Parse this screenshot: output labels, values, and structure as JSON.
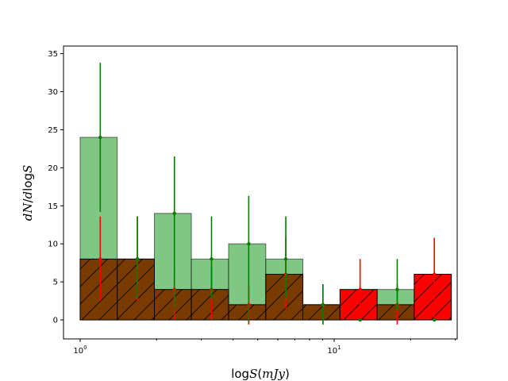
{
  "chart_data": {
    "type": "bar",
    "xlabel": "logS(mJy)",
    "ylabel": "dN/dlogS",
    "xscale": "log",
    "xlim": [
      0.86,
      30.5
    ],
    "ylim": [
      -2.5,
      36.0
    ],
    "yticks": [
      0,
      5,
      10,
      15,
      20,
      25,
      30,
      35
    ],
    "xticks": [
      {
        "value": 1,
        "base": "10",
        "exp": "0"
      },
      {
        "value": 10,
        "base": "10",
        "exp": "1"
      }
    ],
    "bin_edges": [
      1.0,
      1.4,
      1.96,
      2.74,
      3.84,
      5.38,
      7.53,
      10.54,
      14.76,
      20.66,
      28.93
    ],
    "bin_centers": [
      1.2,
      1.68,
      2.35,
      3.29,
      4.61,
      6.45,
      9.03,
      12.65,
      17.71,
      24.79
    ],
    "series": [
      {
        "style": "green translucent bars with error bars",
        "color": "#4caf50",
        "values": [
          24,
          8,
          14,
          8,
          10,
          8,
          2,
          0,
          4,
          0
        ],
        "yerr_low": [
          9.8,
          5.2,
          12.5,
          5.2,
          10.5,
          5.2,
          2.6,
          0,
          2.7,
          0
        ],
        "yerr_high": [
          9.8,
          5.6,
          7.5,
          5.6,
          6.3,
          5.6,
          2.7,
          0,
          4.0,
          0
        ]
      },
      {
        "style": "red hatched bars with error bars",
        "color": "#ff0000",
        "values": [
          8,
          8,
          4,
          4,
          2,
          6,
          2,
          4,
          2,
          6
        ],
        "yerr_low": [
          5.5,
          5.5,
          4.0,
          4.0,
          2.6,
          4.5,
          2.6,
          4.0,
          2.6,
          6.0
        ],
        "yerr_high": [
          5.6,
          5.6,
          2.5,
          3.0,
          2.6,
          4.9,
          2.7,
          4.0,
          2.7,
          4.8
        ]
      }
    ]
  }
}
